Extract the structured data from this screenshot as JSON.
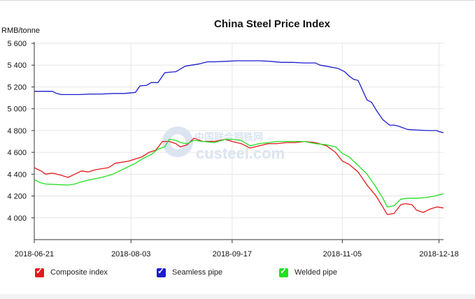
{
  "chart_data": {
    "type": "line",
    "title": "China Steel Price Index",
    "ylabel": "RMB/tonne",
    "xlabel": "",
    "ylim": [
      3800,
      5600
    ],
    "xlim": [
      0,
      182
    ],
    "yticks": [
      4000,
      4200,
      4400,
      4600,
      4800,
      5000,
      5200,
      5400,
      5600
    ],
    "ytick_labels": [
      "4 000",
      "4 200",
      "4 400",
      "4 600",
      "4 800",
      "5 000",
      "5 200",
      "5 400",
      "5 600"
    ],
    "xticks": [
      0,
      43,
      88,
      137,
      180
    ],
    "xtick_labels": [
      "2018-06-21",
      "2018-08-03",
      "2018-09-17",
      "2018-11-05",
      "2018-12-18"
    ],
    "grid": true,
    "legend": "bottom",
    "watermark": "中国联合钢铁网 custeel.com",
    "series": [
      {
        "name": "Composite index",
        "color": "#e41a1c",
        "x": [
          0,
          3,
          5,
          8,
          12,
          15,
          18,
          21,
          24,
          27,
          30,
          33,
          36,
          39,
          42,
          45,
          48,
          51,
          54,
          57,
          60,
          63,
          65,
          68,
          71,
          75,
          80,
          85,
          88,
          92,
          96,
          100,
          104,
          108,
          112,
          116,
          120,
          125,
          130,
          134,
          137,
          140,
          144,
          148,
          152,
          155,
          157,
          160,
          163,
          165,
          168,
          170,
          173,
          176,
          179,
          182
        ],
        "values": [
          4460,
          4430,
          4400,
          4410,
          4390,
          4370,
          4400,
          4430,
          4420,
          4440,
          4450,
          4460,
          4500,
          4510,
          4520,
          4540,
          4560,
          4600,
          4620,
          4700,
          4700,
          4680,
          4650,
          4670,
          4730,
          4700,
          4700,
          4720,
          4700,
          4680,
          4640,
          4660,
          4680,
          4680,
          4690,
          4690,
          4700,
          4690,
          4660,
          4600,
          4520,
          4490,
          4420,
          4300,
          4200,
          4100,
          4030,
          4040,
          4120,
          4130,
          4120,
          4070,
          4050,
          4080,
          4100,
          4090
        ]
      },
      {
        "name": "Seamless pipe",
        "color": "#1c1ccf",
        "x": [
          0,
          3,
          8,
          10,
          12,
          15,
          20,
          25,
          30,
          35,
          40,
          45,
          47,
          50,
          52,
          55,
          58,
          60,
          63,
          67,
          70,
          73,
          77,
          80,
          85,
          90,
          95,
          100,
          105,
          110,
          115,
          120,
          125,
          127,
          130,
          135,
          138,
          140,
          142,
          144,
          146,
          148,
          150,
          152,
          155,
          158,
          160,
          162,
          166,
          170,
          175,
          179,
          180,
          182
        ],
        "values": [
          5160,
          5160,
          5160,
          5140,
          5130,
          5130,
          5130,
          5135,
          5135,
          5140,
          5140,
          5150,
          5210,
          5215,
          5240,
          5240,
          5330,
          5335,
          5340,
          5390,
          5400,
          5410,
          5430,
          5430,
          5435,
          5440,
          5440,
          5440,
          5435,
          5425,
          5425,
          5420,
          5420,
          5400,
          5390,
          5370,
          5340,
          5300,
          5270,
          5260,
          5170,
          5080,
          5060,
          4990,
          4900,
          4850,
          4850,
          4840,
          4810,
          4805,
          4800,
          4800,
          4790,
          4780
        ]
      },
      {
        "name": "Welded pipe",
        "color": "#22e022",
        "x": [
          0,
          3,
          5,
          10,
          15,
          18,
          21,
          25,
          30,
          35,
          40,
          45,
          48,
          52,
          55,
          58,
          60,
          63,
          65,
          68,
          71,
          75,
          80,
          85,
          88,
          92,
          96,
          100,
          104,
          108,
          112,
          116,
          120,
          125,
          130,
          134,
          137,
          140,
          144,
          148,
          152,
          155,
          157,
          160,
          163,
          166,
          170,
          174,
          178,
          180,
          182
        ],
        "values": [
          4350,
          4320,
          4310,
          4305,
          4300,
          4310,
          4330,
          4350,
          4370,
          4400,
          4450,
          4500,
          4540,
          4580,
          4630,
          4650,
          4720,
          4710,
          4690,
          4680,
          4710,
          4700,
          4690,
          4720,
          4720,
          4710,
          4660,
          4680,
          4690,
          4700,
          4700,
          4700,
          4700,
          4680,
          4670,
          4650,
          4590,
          4560,
          4480,
          4400,
          4280,
          4180,
          4100,
          4110,
          4170,
          4180,
          4180,
          4185,
          4200,
          4210,
          4220
        ]
      }
    ]
  }
}
